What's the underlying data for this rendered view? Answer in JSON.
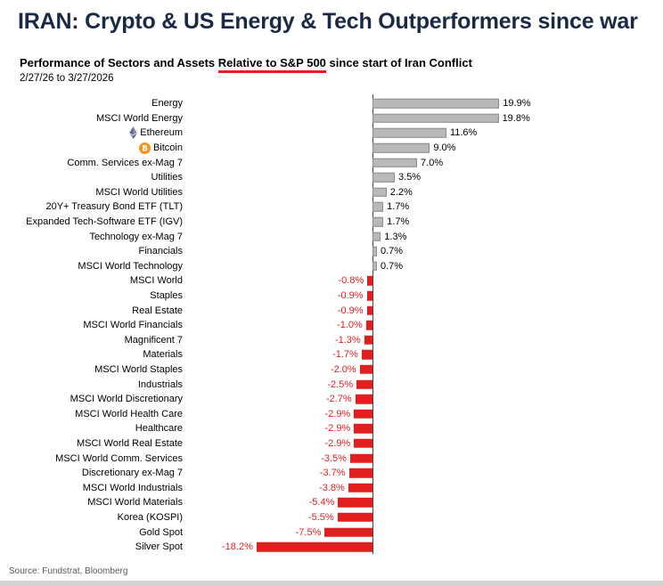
{
  "chart_data": {
    "type": "bar",
    "orientation": "horizontal",
    "title": "IRAN: Crypto & US Energy & Tech Outperformers since war",
    "subtitle": {
      "pre": "Performance of Sectors and Assets ",
      "underlined": "Relative to S&P 500",
      "post": " since start of Iran Conflict"
    },
    "period": "2/27/26 to 3/27/2026",
    "source": "Source: Fundstrat, Bloomberg",
    "value_suffix": "%",
    "xlim": [
      -20,
      24
    ],
    "grid": false,
    "legend": false,
    "categories": [
      "Energy",
      "MSCI World Energy",
      "Ethereum",
      "Bitcoin",
      "Comm. Services ex-Mag 7",
      "Utilities",
      "MSCI World Utilities",
      "20Y+ Treasury Bond ETF (TLT)",
      "Expanded Tech-Software ETF (IGV)",
      "Technology ex-Mag 7",
      "Financials",
      "MSCI World Technology",
      "MSCI World",
      "Staples",
      "Real Estate",
      "MSCI World Financials",
      "Magnificent 7",
      "Materials",
      "MSCI World Staples",
      "Industrials",
      "MSCI World Discretionary",
      "MSCI World Health Care",
      "Healthcare",
      "MSCI World Real Estate",
      "MSCI World Comm. Services",
      "Discretionary ex-Mag 7",
      "MSCI World Industrials",
      "MSCI World Materials",
      "Korea (KOSPI)",
      "Gold Spot",
      "Silver Spot"
    ],
    "values": [
      19.9,
      19.8,
      11.6,
      9.0,
      7.0,
      3.5,
      2.2,
      1.7,
      1.7,
      1.3,
      0.7,
      0.7,
      -0.8,
      -0.9,
      -0.9,
      -1.0,
      -1.3,
      -1.7,
      -2.0,
      -2.5,
      -2.7,
      -2.9,
      -2.9,
      -2.9,
      -3.5,
      -3.7,
      -3.8,
      -5.4,
      -5.5,
      -7.5,
      -18.2
    ],
    "icons": {
      "Ethereum": "ethereum-icon",
      "Bitcoin": "bitcoin-icon"
    },
    "colors": {
      "positive_bar": "#b9b9b9",
      "positive_bar_border": "#8c8c8c",
      "negative_bar": "#e21f1f",
      "positive_label": "#000000",
      "negative_label": "#e21f1f",
      "title": "#1b2a44",
      "underline": "#e21f1f",
      "axis_line": "#404040",
      "source_text": "#595959",
      "bitcoin": "#f7931a"
    }
  }
}
